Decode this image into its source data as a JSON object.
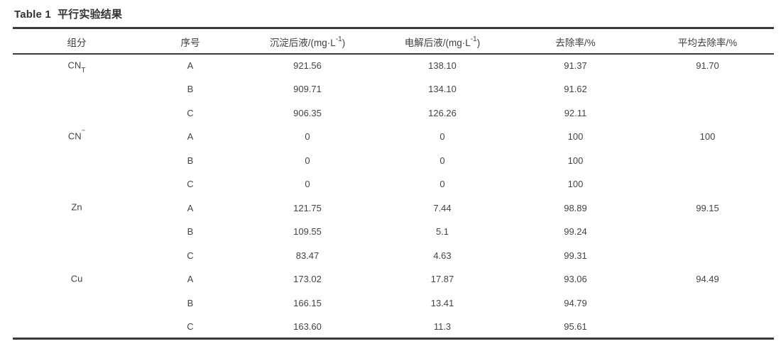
{
  "title": {
    "en": "Table 1",
    "zh": "平行实验结果"
  },
  "table": {
    "headers": {
      "component": "组分",
      "serial": "序号",
      "precipitated": {
        "text": "沉淀后液/(mg·L",
        "sup": "-1",
        "close": ")"
      },
      "electrolyzed": {
        "text": "电解后液/(mg·L",
        "sup": "-1",
        "close": ")"
      },
      "removal": "去除率/%",
      "avg_removal": "平均去除率/%"
    },
    "rows": [
      {
        "component": "CN",
        "component_sub": "T",
        "component_sup": "",
        "serial": "A",
        "precipitated": "921.56",
        "electrolyzed": "138.10",
        "removal": "91.37",
        "avg_removal": "91.70"
      },
      {
        "component": "",
        "component_sub": "",
        "component_sup": "",
        "serial": "B",
        "precipitated": "909.71",
        "electrolyzed": "134.10",
        "removal": "91.62",
        "avg_removal": ""
      },
      {
        "component": "",
        "component_sub": "",
        "component_sup": "",
        "serial": "C",
        "precipitated": "906.35",
        "electrolyzed": "126.26",
        "removal": "92.11",
        "avg_removal": ""
      },
      {
        "component": "CN",
        "component_sub": "",
        "component_sup": "−",
        "serial": "A",
        "precipitated": "0",
        "electrolyzed": "0",
        "removal": "100",
        "avg_removal": "100"
      },
      {
        "component": "",
        "component_sub": "",
        "component_sup": "",
        "serial": "B",
        "precipitated": "0",
        "electrolyzed": "0",
        "removal": "100",
        "avg_removal": ""
      },
      {
        "component": "",
        "component_sub": "",
        "component_sup": "",
        "serial": "C",
        "precipitated": "0",
        "electrolyzed": "0",
        "removal": "100",
        "avg_removal": ""
      },
      {
        "component": "Zn",
        "component_sub": "",
        "component_sup": "",
        "serial": "A",
        "precipitated": "121.75",
        "electrolyzed": "7.44",
        "removal": "98.89",
        "avg_removal": "99.15"
      },
      {
        "component": "",
        "component_sub": "",
        "component_sup": "",
        "serial": "B",
        "precipitated": "109.55",
        "electrolyzed": "5.1",
        "removal": "99.24",
        "avg_removal": ""
      },
      {
        "component": "",
        "component_sub": "",
        "component_sup": "",
        "serial": "C",
        "precipitated": "83.47",
        "electrolyzed": "4.63",
        "removal": "99.31",
        "avg_removal": ""
      },
      {
        "component": "Cu",
        "component_sub": "",
        "component_sup": "",
        "serial": "A",
        "precipitated": "173.02",
        "electrolyzed": "17.87",
        "removal": "93.06",
        "avg_removal": "94.49"
      },
      {
        "component": "",
        "component_sub": "",
        "component_sup": "",
        "serial": "B",
        "precipitated": "166.15",
        "electrolyzed": "13.41",
        "removal": "94.79",
        "avg_removal": ""
      },
      {
        "component": "",
        "component_sub": "",
        "component_sup": "",
        "serial": "C",
        "precipitated": "163.60",
        "electrolyzed": "11.3",
        "removal": "95.61",
        "avg_removal": ""
      }
    ]
  }
}
